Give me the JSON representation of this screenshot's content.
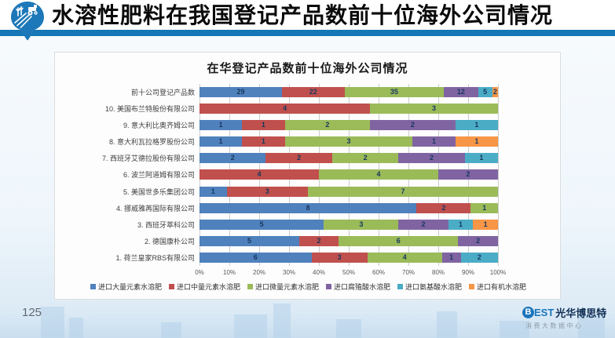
{
  "slide": {
    "header_title": "水溶性肥料在我国登记产品数前十位海外公司情况",
    "page_number": "125"
  },
  "brand": {
    "logo_b": "B",
    "logo_rest": "EST",
    "name": "光华博思特",
    "subtitle": "消费大数据中心"
  },
  "colors": {
    "header_bar": "#1577b5",
    "panel_background": "#fdfdfe",
    "gridline": "#cccccc",
    "value_label": "#17375e"
  },
  "chart_data": {
    "type": "bar",
    "orientation": "horizontal",
    "stacked": "100%",
    "title": "在华登记产品数前十位海外公司情况",
    "xlabel": "",
    "ylabel": "",
    "xlim": [
      0,
      100
    ],
    "grid": true,
    "legend_position": "bottom",
    "x_ticks": [
      "0%",
      "10%",
      "20%",
      "30%",
      "40%",
      "50%",
      "60%",
      "70%",
      "80%",
      "90%",
      "100%"
    ],
    "series": [
      {
        "name": "进口大量元素水溶肥",
        "color": "#4F81BD"
      },
      {
        "name": "进口中量元素水溶肥",
        "color": "#C0504D"
      },
      {
        "name": "进口微量元素水溶肥",
        "color": "#9BBB59"
      },
      {
        "name": "进口腐殖酸水溶肥",
        "color": "#8064A2"
      },
      {
        "name": "进口氨基酸水溶肥",
        "color": "#4BACC6"
      },
      {
        "name": "进口有机水溶肥",
        "color": "#F79646"
      }
    ],
    "categories": [
      "前十公司登记产品数",
      "10. 美国布兰特股份有限公司",
      "9. 意大利比奥齐姆公司",
      "8. 意大利瓦拉格罗股份公司",
      "7. 西班牙艾德拉股份有限公司",
      "6. 波兰阿道姆有限公司",
      "5. 美国世多乐集团公司",
      "4. 挪威雅苒国际有限公司",
      "3. 西班牙萃科公司",
      "2. 德国康朴公司",
      "1. 荷兰皇家RBS有限公司"
    ],
    "values": [
      [
        29,
        22,
        35,
        12,
        5,
        2
      ],
      [
        0,
        4,
        3,
        0,
        0,
        0
      ],
      [
        1,
        1,
        2,
        2,
        1,
        0
      ],
      [
        1,
        1,
        3,
        1,
        0,
        1
      ],
      [
        2,
        2,
        2,
        2,
        1,
        0
      ],
      [
        0,
        4,
        4,
        2,
        0,
        0
      ],
      [
        1,
        3,
        7,
        0,
        0,
        0
      ],
      [
        8,
        2,
        1,
        0,
        0,
        0
      ],
      [
        5,
        0,
        3,
        2,
        1,
        1
      ],
      [
        5,
        2,
        6,
        2,
        0,
        0
      ],
      [
        6,
        3,
        4,
        1,
        2,
        0
      ]
    ]
  }
}
